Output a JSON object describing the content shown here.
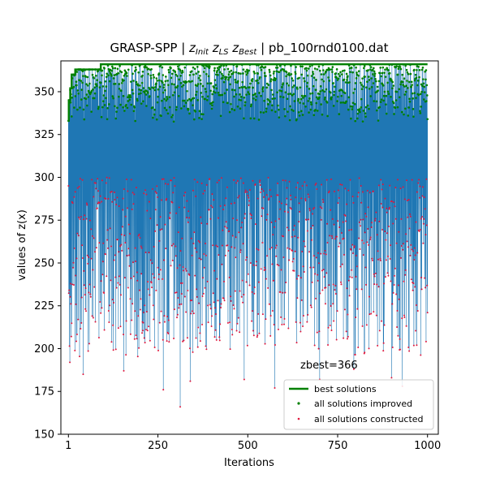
{
  "chart_data": {
    "type": "line",
    "title": "GRASP-SPP | z_Init z_LS z_Best | pb_100rnd0100.dat",
    "title_parts": {
      "prefix": "GRASP-SPP | ",
      "z1": "z",
      "s1": "Init",
      "z2": "z",
      "s2": "LS",
      "z3": "z",
      "s3": "Best",
      "suffix": " | pb_100rnd0100.dat"
    },
    "xlabel": "Iterations",
    "ylabel": "values of z(x)",
    "xlim": [
      -20,
      1030
    ],
    "ylim": [
      150,
      368
    ],
    "xticks": [
      1,
      250,
      500,
      750,
      1000
    ],
    "yticks": [
      150,
      175,
      200,
      225,
      250,
      275,
      300,
      325,
      350
    ],
    "annotation": "zbest=366",
    "legend_position": "lower right",
    "series": [
      {
        "name": "best solutions",
        "style": "line",
        "color": "#008000",
        "x": [
          1,
          2,
          6,
          10,
          20,
          90,
          91,
          1000
        ],
        "y": [
          333,
          345,
          352,
          360,
          363,
          363,
          366,
          366
        ]
      },
      {
        "name": "all solutions improved",
        "style": "points",
        "color": "#008000",
        "description_range": [
          330,
          366
        ]
      },
      {
        "name": "all solutions constructed",
        "style": "points",
        "color": "#e0163c",
        "description_range": [
          166,
          300
        ]
      }
    ],
    "constructed_samples": [
      {
        "x": 1,
        "y": 295
      },
      {
        "x": 5,
        "y": 192
      },
      {
        "x": 37,
        "y": 215
      },
      {
        "x": 42,
        "y": 185
      },
      {
        "x": 70,
        "y": 218
      },
      {
        "x": 155,
        "y": 187
      },
      {
        "x": 265,
        "y": 176
      },
      {
        "x": 312,
        "y": 166
      },
      {
        "x": 340,
        "y": 181
      },
      {
        "x": 490,
        "y": 182
      },
      {
        "x": 575,
        "y": 177
      },
      {
        "x": 700,
        "y": 182
      },
      {
        "x": 795,
        "y": 188
      },
      {
        "x": 900,
        "y": 183
      },
      {
        "x": 930,
        "y": 178
      },
      {
        "x": 1000,
        "y": 221
      }
    ],
    "improved_samples": [
      {
        "x": 1,
        "y": 333
      },
      {
        "x": 90,
        "y": 366
      },
      {
        "x": 300,
        "y": 360
      },
      {
        "x": 500,
        "y": 362
      },
      {
        "x": 650,
        "y": 360
      },
      {
        "x": 800,
        "y": 355
      },
      {
        "x": 1000,
        "y": 334
      }
    ],
    "connector_line_color": "#1f77b4",
    "seed": 100
  }
}
